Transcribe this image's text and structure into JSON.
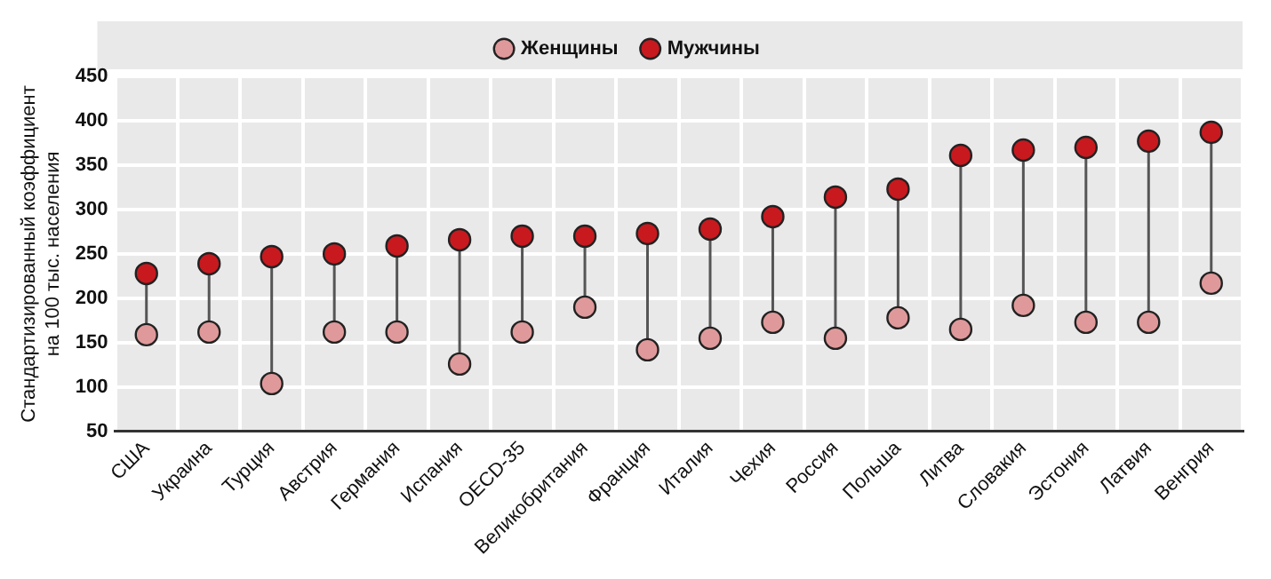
{
  "chart_data": {
    "type": "scatter",
    "ylabel": "Стандартизированный коэффициент\nна 100 тыс. населения",
    "categories": [
      "США",
      "Украина",
      "Турция",
      "Австрия",
      "Германия",
      "Испания",
      "OECD-35",
      "Великобритания",
      "Франция",
      "Италия",
      "Чехия",
      "Россия",
      "Польша",
      "Литва",
      "Словакия",
      "Эстония",
      "Латвия",
      "Венгрия"
    ],
    "series": [
      {
        "name": "Женщины",
        "color": "#e0999a",
        "values": [
          159,
          162,
          104,
          162,
          162,
          126,
          162,
          190,
          142,
          155,
          173,
          155,
          178,
          165,
          192,
          173,
          173,
          217
        ]
      },
      {
        "name": "Мужчины",
        "color": "#c8191f",
        "values": [
          228,
          239,
          247,
          250,
          259,
          266,
          270,
          270,
          273,
          278,
          292,
          314,
          323,
          361,
          367,
          370,
          377,
          387
        ]
      }
    ],
    "ylim": [
      50,
      450
    ],
    "yticks": [
      50,
      100,
      150,
      200,
      250,
      300,
      350,
      400,
      450
    ],
    "grid": true,
    "legend": "top",
    "marker": "circle"
  }
}
